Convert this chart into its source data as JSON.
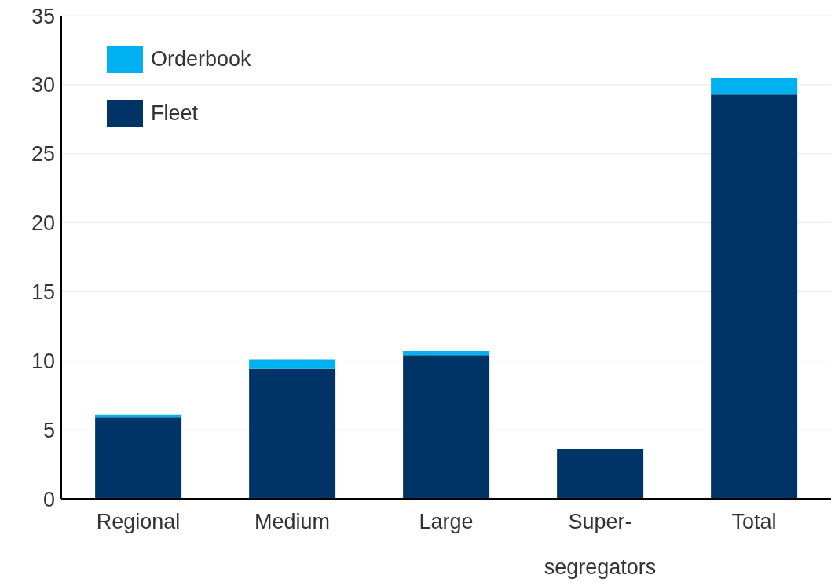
{
  "chart_data": {
    "type": "bar",
    "stacked": true,
    "categories": [
      "Regional",
      "Medium",
      "Large",
      "Super-segregators",
      "Total"
    ],
    "series": [
      {
        "name": "Fleet",
        "color": "#003366",
        "values": [
          5.9,
          9.4,
          10.4,
          3.6,
          29.3
        ]
      },
      {
        "name": "Orderbook",
        "color": "#00b0f0",
        "values": [
          0.2,
          0.7,
          0.3,
          0,
          1.2
        ]
      }
    ],
    "ylim": [
      0,
      35
    ],
    "yticks": [
      0,
      5,
      10,
      15,
      20,
      25,
      30,
      35
    ],
    "grid": "y",
    "legend": "top left"
  }
}
